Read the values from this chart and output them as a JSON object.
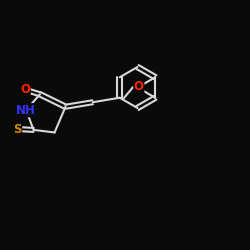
{
  "bg_color": "#0a0a0a",
  "line_color": "#d8d8d8",
  "atom_colors": {
    "O": "#ff2200",
    "N": "#3333ff",
    "S": "#cc8800"
  },
  "lw": 1.5,
  "fs": 8.5
}
